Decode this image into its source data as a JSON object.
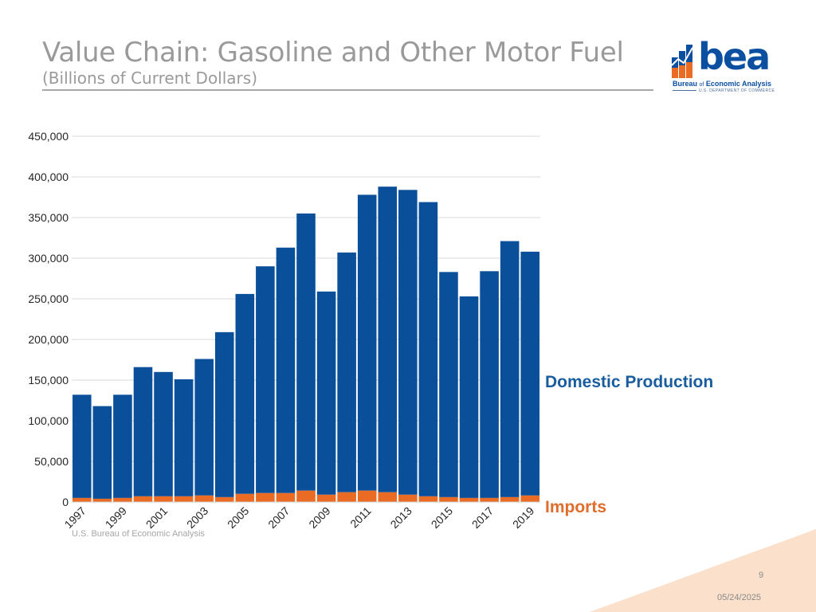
{
  "header": {
    "title": "Value Chain: Gasoline and Other Motor Fuel",
    "subtitle": "(Billions of Current Dollars)"
  },
  "logo": {
    "word": "bea",
    "full_name_prefix": "Bureau ",
    "full_name_of": "of",
    "full_name_suffix": " Economic Analysis",
    "department": "U.S. DEPARTMENT OF COMMERCE"
  },
  "colors": {
    "domestic": "#0a4f99",
    "imports": "#ea6b24",
    "domestic_label": "#1a5d9e",
    "imports_label": "#e06d2c",
    "gridline": "#d9d9d9",
    "corner_decoration": "#fbe0cc"
  },
  "chart_data": {
    "type": "bar",
    "stacked": true,
    "categories": [
      "1997",
      "1998",
      "1999",
      "2000",
      "2001",
      "2002",
      "2003",
      "2004",
      "2005",
      "2006",
      "2007",
      "2008",
      "2009",
      "2010",
      "2011",
      "2012",
      "2013",
      "2014",
      "2015",
      "2016",
      "2017",
      "2018",
      "2019"
    ],
    "tick_labels": [
      "1997",
      "1999",
      "2001",
      "2003",
      "2005",
      "2007",
      "2009",
      "2011",
      "2013",
      "2015",
      "2017",
      "2019"
    ],
    "series": [
      {
        "name": "Imports",
        "values": [
          5000,
          4000,
          5000,
          7000,
          7000,
          7000,
          8000,
          6000,
          10000,
          11000,
          11000,
          14000,
          9000,
          12000,
          14000,
          12000,
          9000,
          7000,
          6000,
          5000,
          5000,
          6000,
          8000
        ]
      },
      {
        "name": "Domestic Production",
        "values": [
          127000,
          114000,
          127000,
          159000,
          153000,
          144000,
          168000,
          203000,
          246000,
          279000,
          302000,
          341000,
          250000,
          295000,
          364000,
          376000,
          375000,
          362000,
          277000,
          248000,
          279000,
          315000,
          300000
        ]
      }
    ],
    "y_ticks": [
      "0",
      "50,000",
      "100,000",
      "150,000",
      "200,000",
      "250,000",
      "300,000",
      "350,000",
      "400,000",
      "450,000"
    ],
    "ylim": [
      0,
      450000
    ],
    "grid": true,
    "legend": "direct labels at right"
  },
  "labels": {
    "domestic": "Domestic Production",
    "imports": "Imports"
  },
  "footer": {
    "source": "U.S. Bureau of Economic Analysis",
    "page_number": "9",
    "date": "05/24/2025"
  }
}
